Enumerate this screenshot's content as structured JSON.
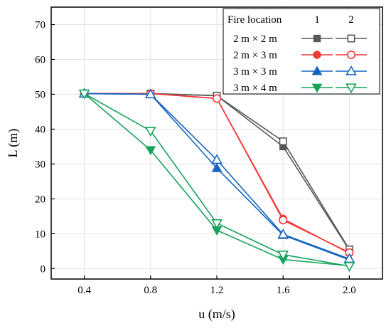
{
  "chart_data": {
    "type": "line",
    "xlabel": "u (m/s)",
    "ylabel": "L (m)",
    "xlim": [
      0.2,
      2.2
    ],
    "ylim": [
      -3,
      75
    ],
    "x_ticks": [
      "0.4",
      "0.8",
      "1.2",
      "1.6",
      "2.0"
    ],
    "y_ticks": [
      "0",
      "10",
      "20",
      "30",
      "40",
      "50",
      "60",
      "70"
    ],
    "x": [
      0.4,
      0.8,
      1.2,
      1.6,
      2.0
    ],
    "grid": true,
    "legend": {
      "placement": "top-right",
      "header": "Fire location",
      "columns": [
        "1",
        "2"
      ]
    },
    "series": [
      {
        "name": "2 m × 2 m",
        "location": "1",
        "color": "#595959",
        "marker": "square-filled",
        "values": [
          50.2,
          50.2,
          49.6,
          35.0,
          5.3
        ]
      },
      {
        "name": "2 m × 2 m",
        "location": "2",
        "color": "#595959",
        "marker": "square-open",
        "values": [
          50.2,
          50.2,
          49.6,
          36.5,
          5.5
        ]
      },
      {
        "name": "2 m × 3 m",
        "location": "1",
        "color": "#f23a3a",
        "marker": "circle-filled",
        "values": [
          50.2,
          50.2,
          48.8,
          14.3,
          4.4
        ]
      },
      {
        "name": "2 m × 3 m",
        "location": "2",
        "color": "#f23a3a",
        "marker": "circle-open",
        "values": [
          50.2,
          50.2,
          48.8,
          13.9,
          4.6
        ]
      },
      {
        "name": "3 m × 3 m",
        "location": "1",
        "color": "#1565c0",
        "marker": "triangle-up-filled",
        "values": [
          50.2,
          50.0,
          28.8,
          9.6,
          2.5
        ]
      },
      {
        "name": "3 m × 3 m",
        "location": "2",
        "color": "#1565c0",
        "marker": "triangle-up-open",
        "values": [
          50.2,
          50.0,
          31.2,
          9.8,
          2.8
        ]
      },
      {
        "name": "3 m × 4 m",
        "location": "1",
        "color": "#17a35a",
        "marker": "triangle-down-filled",
        "values": [
          50.2,
          34.0,
          11.0,
          2.6,
          0.8
        ]
      },
      {
        "name": "3 m × 4 m",
        "location": "2",
        "color": "#17a35a",
        "marker": "triangle-down-open",
        "values": [
          50.2,
          39.5,
          13.0,
          4.0,
          0.7
        ]
      }
    ]
  }
}
